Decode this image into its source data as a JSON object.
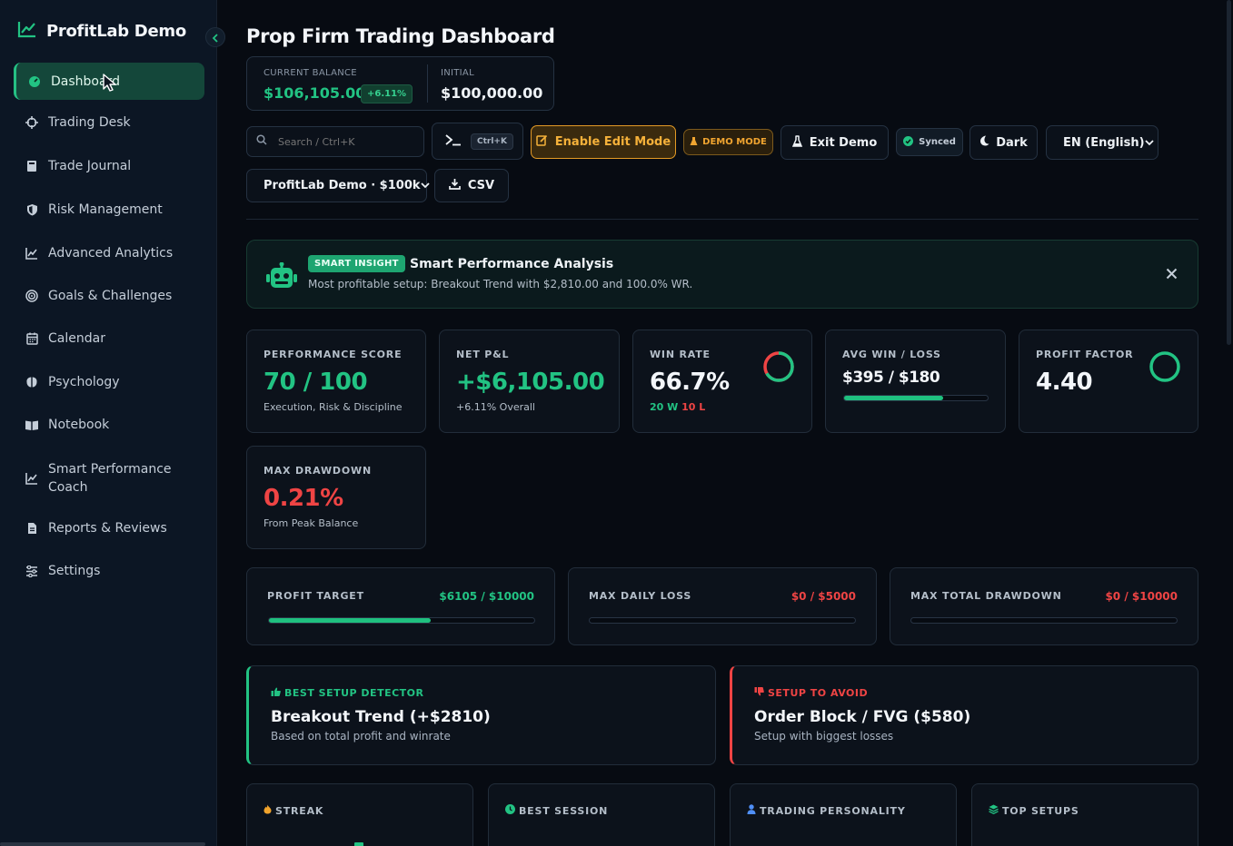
{
  "app": {
    "name": "ProfitLab Demo"
  },
  "sidebar": {
    "items": [
      {
        "label": "Dashboard",
        "icon": "gauge-icon",
        "active": true
      },
      {
        "label": "Trading Desk",
        "icon": "crosshair-icon"
      },
      {
        "label": "Trade Journal",
        "icon": "book-icon"
      },
      {
        "label": "Risk Management",
        "icon": "shield-icon"
      },
      {
        "label": "Advanced Analytics",
        "icon": "chart-line-icon"
      },
      {
        "label": "Goals & Challenges",
        "icon": "target-icon"
      },
      {
        "label": "Calendar",
        "icon": "calendar-icon"
      },
      {
        "label": "Psychology",
        "icon": "brain-icon"
      },
      {
        "label": "Notebook",
        "icon": "open-book-icon"
      },
      {
        "label": "Smart Performance Coach",
        "icon": "chart-line-icon"
      },
      {
        "label": "Reports & Reviews",
        "icon": "file-icon"
      },
      {
        "label": "Settings",
        "icon": "sliders-icon"
      }
    ]
  },
  "header": {
    "title": "Prop Firm Trading Dashboard",
    "balance": {
      "current_label": "CURRENT BALANCE",
      "current_value": "$106,105.00",
      "change": "+6.11%",
      "initial_label": "INITIAL",
      "initial_value": "$100,000.00"
    }
  },
  "toolbar": {
    "search_placeholder": "Search / Ctrl+K",
    "cmd_shortcut": "Ctrl+K",
    "edit_mode_label": "Enable Edit Mode",
    "demo_badge": "DEMO MODE",
    "exit_demo_label": "Exit Demo",
    "synced_label": "Synced",
    "theme_label": "Dark",
    "language_value": "EN (English)",
    "account_value": "ProfitLab Demo · $100k",
    "csv_label": "CSV"
  },
  "insight": {
    "tag": "SMART INSIGHT",
    "title": "Smart Performance Analysis",
    "text": "Most profitable setup: Breakout Trend with $2,810.00 and 100.0% WR."
  },
  "stats": {
    "performance": {
      "label": "PERFORMANCE SCORE",
      "value": "70 / 100",
      "sub": "Execution, Risk & Discipline"
    },
    "net_pnl": {
      "label": "NET P&L",
      "value": "+$6,105.00",
      "sub": "+6.11% Overall"
    },
    "win_rate": {
      "label": "WIN RATE",
      "value": "66.7%",
      "wins": "20 W",
      "losses": "10 L",
      "ratio": 0.667
    },
    "avg_win_loss": {
      "label": "AVG WIN / LOSS",
      "value": "$395 / $180",
      "ratio": 0.687
    },
    "profit_factor": {
      "label": "PROFIT FACTOR",
      "value": "4.40"
    },
    "max_drawdown": {
      "label": "MAX DRAWDOWN",
      "value": "0.21%",
      "sub": "From Peak Balance"
    }
  },
  "goals": {
    "profit_target": {
      "label": "PROFIT TARGET",
      "value": "$6105 / $10000",
      "progress": 0.6105
    },
    "max_daily_loss": {
      "label": "MAX DAILY LOSS",
      "value": "$0 / $5000",
      "progress": 0
    },
    "max_total_drawdown": {
      "label": "MAX TOTAL DRAWDOWN",
      "value": "$0 / $10000",
      "progress": 0
    }
  },
  "setups": {
    "best": {
      "tag": "BEST SETUP DETECTOR",
      "title": "Breakout Trend (+$2810)",
      "sub": "Based on total profit and winrate"
    },
    "avoid": {
      "tag": "SETUP TO AVOID",
      "title": "Order Block / FVG ($580)",
      "sub": "Setup with biggest losses"
    }
  },
  "mini_cards": {
    "streak": "STREAK",
    "best_session": "BEST SESSION",
    "personality": "TRADING PERSONALITY",
    "top_setups": "TOP SETUPS"
  },
  "colors": {
    "accent_green": "#22c383",
    "loss_red": "#ef4444",
    "warning_amber": "#f0a32c",
    "background": "#070b12"
  }
}
